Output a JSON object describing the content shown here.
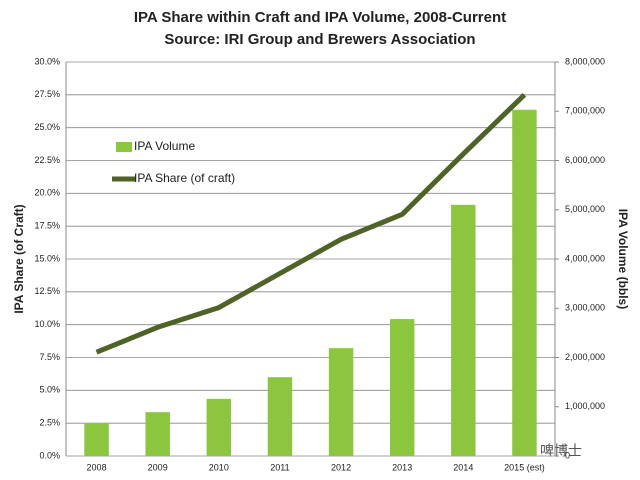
{
  "chart_data": {
    "type": "combo",
    "title": "IPA Share within Craft and IPA Volume, 2008-Current",
    "subtitle": "Source: IRI Group and Brewers Association",
    "y_label": "IPA Share (of Craft)",
    "y2_label": "IPA Volume (bbls)",
    "watermark": "啤博士",
    "categories": [
      "2008",
      "2009",
      "2010",
      "2011",
      "2012",
      "2013",
      "2014",
      "2015 (est)"
    ],
    "series": [
      {
        "name": "IPA Volume",
        "type": "bar",
        "axis": "y2",
        "color": "#8cc63f",
        "values": [
          670000,
          890000,
          1160000,
          1600000,
          2190000,
          2780000,
          5100000,
          7030000
        ]
      },
      {
        "name": "IPA Share (of craft)",
        "type": "line",
        "axis": "y",
        "color": "#4f6228",
        "values": [
          7.9,
          9.8,
          11.3,
          13.9,
          16.5,
          18.4,
          23.0,
          27.5
        ]
      }
    ],
    "ylim": [
      0,
      30
    ],
    "yticks": [
      {
        "value": 0,
        "label": "0.0%"
      },
      {
        "value": 2.5,
        "label": "2.5%"
      },
      {
        "value": 5,
        "label": "5.0%"
      },
      {
        "value": 7.5,
        "label": "7.5%"
      },
      {
        "value": 10,
        "label": "10.0%"
      },
      {
        "value": 12.5,
        "label": "12.5%"
      },
      {
        "value": 15,
        "label": "15.0%"
      },
      {
        "value": 17.5,
        "label": "17.5%"
      },
      {
        "value": 20,
        "label": "20.0%"
      },
      {
        "value": 22.5,
        "label": "22.5%"
      },
      {
        "value": 25,
        "label": "25.0%"
      },
      {
        "value": 27.5,
        "label": "27.5%"
      },
      {
        "value": 30,
        "label": "30.0%"
      }
    ],
    "y2lim": [
      0,
      8000000
    ],
    "y2ticks": [
      0,
      {
        "value": 1000000,
        "label": "1,000,000"
      },
      {
        "value": 2000000,
        "label": "2,000,000"
      },
      {
        "value": 3000000,
        "label": "3,000,000"
      },
      {
        "value": 4000000,
        "label": "4,000,000"
      },
      {
        "value": 5000000,
        "label": "5,000,000"
      },
      {
        "value": 6000000,
        "label": "6,000,000"
      },
      {
        "value": 7000000,
        "label": "7,000,000"
      },
      {
        "value": 8000000,
        "label": "8,000,000"
      }
    ],
    "grid": true,
    "legend": "upper left"
  }
}
